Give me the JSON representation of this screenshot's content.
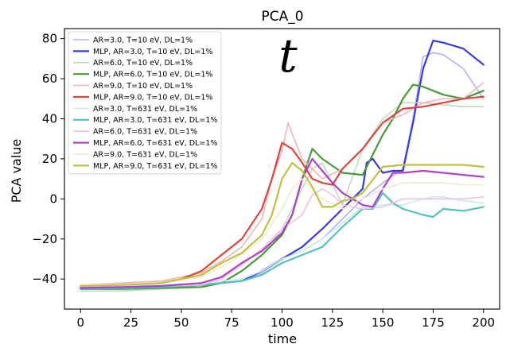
{
  "chart_data": {
    "type": "line",
    "title": "PCA_0",
    "xlabel": "time",
    "ylabel": "PCA value",
    "xlim": [
      -8,
      208
    ],
    "ylim": [
      -55,
      85
    ],
    "xticks": [
      0,
      25,
      50,
      75,
      100,
      125,
      150,
      175,
      200
    ],
    "yticks": [
      -40,
      -20,
      0,
      20,
      40,
      60,
      80
    ],
    "grid": false,
    "legend_position": "top-left",
    "annotation": "t",
    "series": [
      {
        "name": "AR=3.0, T=10 eV, DL=1%",
        "color": "#b3b3ee",
        "width": 1.6,
        "x": [
          0,
          20,
          40,
          60,
          70,
          80,
          90,
          100,
          110,
          120,
          130,
          140,
          150,
          160,
          165,
          170,
          175,
          180,
          190,
          200
        ],
        "y": [
          -44,
          -44,
          -43.5,
          -43,
          -42,
          -41,
          -37,
          -30,
          -26,
          -20,
          -10,
          0,
          8,
          15,
          40,
          71,
          73,
          72,
          65,
          50
        ]
      },
      {
        "name": "MLP, AR=3.0, T=10 eV, DL=1%",
        "color": "#3a3adb",
        "width": 2.2,
        "x": [
          0,
          20,
          40,
          60,
          70,
          80,
          90,
          100,
          110,
          120,
          130,
          140,
          142,
          145,
          150,
          155,
          160,
          165,
          170,
          175,
          180,
          190,
          200
        ],
        "y": [
          -45,
          -44.5,
          -44,
          -43,
          -42,
          -41,
          -36,
          -30,
          -24,
          -15,
          -5,
          5,
          18,
          20,
          13,
          14,
          14,
          38,
          65,
          79,
          78,
          75,
          67
        ]
      },
      {
        "name": "AR=6.0, T=10 eV, DL=1%",
        "color": "#bfd9bf",
        "width": 1.6,
        "x": [
          0,
          20,
          40,
          60,
          70,
          80,
          90,
          100,
          105,
          110,
          115,
          120,
          130,
          140,
          150,
          160,
          170,
          180,
          190,
          200
        ],
        "y": [
          -46,
          -46,
          -45,
          -44,
          -42,
          -36,
          -28,
          -15,
          -5,
          5,
          15,
          18,
          -3,
          25,
          40,
          48,
          48,
          47,
          46,
          46
        ]
      },
      {
        "name": "MLP, AR=6.0, T=10 eV, DL=1%",
        "color": "#4a9a3a",
        "width": 2.2,
        "x": [
          0,
          20,
          40,
          60,
          70,
          80,
          90,
          100,
          105,
          110,
          115,
          120,
          130,
          140,
          150,
          155,
          160,
          165,
          170,
          180,
          190,
          200
        ],
        "y": [
          -45,
          -45,
          -44.5,
          -44,
          -42,
          -36,
          -28,
          -18,
          -8,
          10,
          25,
          20,
          13,
          12,
          32,
          40,
          50,
          57,
          56,
          52,
          50,
          54
        ]
      },
      {
        "name": "AR=9.0, T=10 eV, DL=1%",
        "color": "#f0b5b5",
        "width": 1.6,
        "x": [
          0,
          20,
          40,
          60,
          70,
          80,
          90,
          95,
          100,
          103,
          106,
          110,
          115,
          120,
          130,
          140,
          150,
          160,
          170,
          180,
          190,
          200
        ],
        "y": [
          -43,
          -42,
          -41,
          -37,
          -31,
          -24,
          -10,
          10,
          24,
          38,
          30,
          20,
          15,
          10,
          15,
          25,
          38,
          42,
          48,
          50,
          50,
          58
        ]
      },
      {
        "name": "MLP, AR=9.0, T=10 eV, DL=1%",
        "color": "#e0433e",
        "width": 2.2,
        "x": [
          0,
          20,
          40,
          50,
          60,
          70,
          80,
          90,
          95,
          100,
          105,
          110,
          115,
          120,
          125,
          130,
          140,
          150,
          160,
          170,
          180,
          190,
          200
        ],
        "y": [
          -44,
          -43,
          -42,
          -40,
          -36,
          -28,
          -20,
          -5,
          10,
          28,
          25,
          18,
          10,
          8,
          7,
          15,
          25,
          38,
          45,
          46,
          48,
          50,
          51
        ]
      },
      {
        "name": "AR=3.0, T=631 eV, DL=1%",
        "color": "#c8ecec",
        "width": 1.6,
        "x": [
          0,
          20,
          40,
          60,
          70,
          80,
          90,
          100,
          110,
          120,
          130,
          140,
          150,
          160,
          170,
          175,
          180,
          190,
          200
        ],
        "y": [
          -44,
          -43.5,
          -43,
          -42,
          -41,
          -40,
          -36,
          -30,
          -26,
          -20,
          -12,
          -4,
          -3,
          -3,
          0,
          1,
          1,
          -1,
          -2
        ]
      },
      {
        "name": "MLP, AR=3.0, T=631 eV, DL=1%",
        "color": "#55c0c0",
        "width": 2.2,
        "x": [
          0,
          20,
          40,
          60,
          70,
          80,
          90,
          100,
          110,
          120,
          130,
          140,
          145,
          150,
          155,
          160,
          170,
          175,
          180,
          190,
          200
        ],
        "y": [
          -45,
          -44.5,
          -44,
          -43,
          -42,
          -41,
          -38,
          -32,
          -28,
          -24,
          -14,
          -5,
          -5,
          3,
          -2,
          -5,
          -8,
          -9,
          -5,
          -6,
          -4
        ]
      },
      {
        "name": "AR=6.0, T=631 eV, DL=1%",
        "color": "#f2c0e4",
        "width": 1.6,
        "x": [
          0,
          20,
          40,
          60,
          70,
          80,
          90,
          100,
          110,
          115,
          120,
          125,
          130,
          140,
          150,
          160,
          170,
          180,
          190,
          200
        ],
        "y": [
          -44,
          -44,
          -43.5,
          -43,
          -40,
          -33,
          -25,
          -15,
          -8,
          2,
          5,
          2,
          -3,
          -5,
          -4,
          0,
          0,
          0,
          0,
          1
        ]
      },
      {
        "name": "MLP, AR=6.0, T=631 eV, DL=1%",
        "color": "#b040c8",
        "width": 2.2,
        "x": [
          0,
          20,
          40,
          60,
          70,
          80,
          90,
          100,
          105,
          110,
          115,
          120,
          125,
          130,
          140,
          145,
          150,
          155,
          160,
          170,
          180,
          190,
          200
        ],
        "y": [
          -44.5,
          -44,
          -43.5,
          -42,
          -39,
          -32,
          -26,
          -17,
          -8,
          10,
          20,
          14,
          8,
          3,
          -3,
          -4,
          5,
          13,
          13,
          14,
          13,
          12,
          11
        ]
      },
      {
        "name": "AR=9.0, T=631 eV, DL=1%",
        "color": "#eaeccc",
        "width": 1.6,
        "x": [
          0,
          20,
          40,
          60,
          70,
          80,
          90,
          100,
          105,
          110,
          115,
          120,
          130,
          140,
          150,
          160,
          170,
          180,
          190,
          200
        ],
        "y": [
          -43,
          -42.5,
          -42,
          -39,
          -34,
          -28,
          -20,
          -5,
          5,
          10,
          5,
          0,
          -5,
          0,
          5,
          8,
          8,
          8,
          7,
          7
        ]
      },
      {
        "name": "MLP, AR=9.0, T=631 eV, DL=1%",
        "color": "#c2bf43",
        "width": 2.2,
        "x": [
          0,
          20,
          40,
          60,
          70,
          80,
          90,
          95,
          100,
          105,
          110,
          115,
          120,
          125,
          130,
          135,
          140,
          150,
          160,
          170,
          180,
          190,
          200
        ],
        "y": [
          -43.5,
          -43,
          -42,
          -38,
          -32,
          -27,
          -18,
          -8,
          10,
          18,
          14,
          6,
          -4,
          -4,
          -1,
          0,
          3,
          16,
          17,
          17,
          17,
          17,
          16
        ]
      }
    ]
  }
}
